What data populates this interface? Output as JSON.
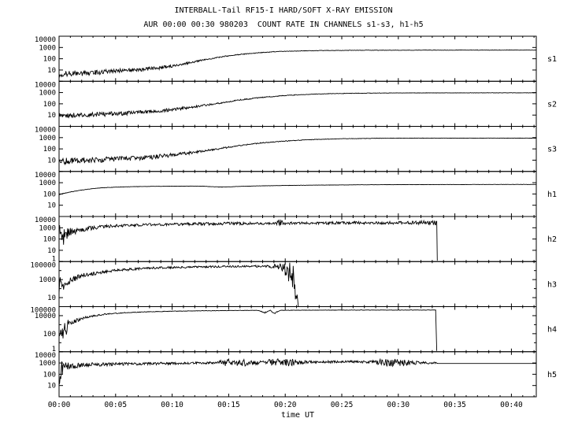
{
  "chart_data": {
    "type": "line",
    "title": "INTERBALL-Tail RF15-I HARD/SOFT X-RAY EMISSION",
    "subtitle": "AUR 00:00 00:30 980203  COUNT RATE IN CHANNELS s1-s3, h1-h5",
    "xlabel": "time UT",
    "y_scale": "log10",
    "panel_arrangement": "stacked-shared-x",
    "grid": false,
    "legend": "none",
    "colors": {
      "line": "#000000",
      "frame": "#000000",
      "background": "#ffffff"
    },
    "x_axis": {
      "unit": "minutes",
      "min": 0,
      "max": 42.2,
      "major_ticks": [
        {
          "t": 0,
          "label": "00:00"
        },
        {
          "t": 5,
          "label": "00:05"
        },
        {
          "t": 10,
          "label": "00:10"
        },
        {
          "t": 15,
          "label": "00:15"
        },
        {
          "t": 20,
          "label": "00:20"
        },
        {
          "t": 25,
          "label": "00:25"
        },
        {
          "t": 30,
          "label": "00:30"
        },
        {
          "t": 35,
          "label": "00:35"
        },
        {
          "t": 40,
          "label": "00:40"
        }
      ]
    },
    "points_format": "[time_minutes, count_rate, noise_amplitude_decades]",
    "panels": [
      {
        "id": "s1",
        "label": "s1",
        "ymin": 1,
        "ymax": 10000,
        "yticks": [
          10,
          100,
          1000,
          10000
        ],
        "points": [
          [
            0,
            4,
            0.28
          ],
          [
            1,
            5,
            0.25
          ],
          [
            2,
            5,
            0.25
          ],
          [
            3,
            6,
            0.22
          ],
          [
            4,
            7,
            0.22
          ],
          [
            5,
            8,
            0.2
          ],
          [
            6,
            9,
            0.2
          ],
          [
            7,
            11,
            0.18
          ],
          [
            8,
            13,
            0.16
          ],
          [
            9,
            16,
            0.15
          ],
          [
            10,
            22,
            0.12
          ],
          [
            11,
            35,
            0.1
          ],
          [
            12,
            55,
            0.08
          ],
          [
            13,
            85,
            0.06
          ],
          [
            14,
            130,
            0.05
          ],
          [
            15,
            180,
            0.04
          ],
          [
            16,
            240,
            0.04
          ],
          [
            17,
            300,
            0.03
          ],
          [
            18,
            360,
            0.03
          ],
          [
            19,
            420,
            0.03
          ],
          [
            20,
            460,
            0.02
          ],
          [
            22,
            510,
            0.02
          ],
          [
            24,
            540,
            0.02
          ],
          [
            26,
            560,
            0.02
          ],
          [
            28,
            570,
            0.02
          ],
          [
            30,
            575,
            0.015
          ],
          [
            33,
            580,
            0.015
          ],
          [
            36,
            585,
            0.015
          ],
          [
            39,
            585,
            0.015
          ],
          [
            42.2,
            585,
            0.015
          ]
        ]
      },
      {
        "id": "s2",
        "label": "s2",
        "ymin": 1,
        "ymax": 10000,
        "yticks": [
          10,
          100,
          1000,
          10000
        ],
        "points": [
          [
            0,
            9,
            0.22
          ],
          [
            2,
            10,
            0.2
          ],
          [
            4,
            12,
            0.2
          ],
          [
            6,
            15,
            0.18
          ],
          [
            8,
            20,
            0.16
          ],
          [
            10,
            30,
            0.14
          ],
          [
            12,
            55,
            0.1
          ],
          [
            14,
            110,
            0.07
          ],
          [
            16,
            220,
            0.05
          ],
          [
            18,
            380,
            0.04
          ],
          [
            20,
            550,
            0.03
          ],
          [
            22,
            700,
            0.025
          ],
          [
            24,
            800,
            0.02
          ],
          [
            26,
            860,
            0.02
          ],
          [
            28,
            900,
            0.02
          ],
          [
            30,
            920,
            0.015
          ],
          [
            34,
            940,
            0.015
          ],
          [
            38,
            950,
            0.015
          ],
          [
            42.2,
            950,
            0.015
          ]
        ]
      },
      {
        "id": "s3",
        "label": "s3",
        "ymin": 1,
        "ymax": 10000,
        "yticks": [
          10,
          100,
          1000,
          10000
        ],
        "points": [
          [
            0,
            8,
            0.3
          ],
          [
            2,
            9,
            0.28
          ],
          [
            4,
            11,
            0.25
          ],
          [
            6,
            14,
            0.22
          ],
          [
            8,
            18,
            0.2
          ],
          [
            10,
            28,
            0.16
          ],
          [
            12,
            50,
            0.12
          ],
          [
            14,
            100,
            0.08
          ],
          [
            16,
            200,
            0.06
          ],
          [
            18,
            350,
            0.04
          ],
          [
            20,
            500,
            0.03
          ],
          [
            22,
            650,
            0.025
          ],
          [
            24,
            750,
            0.02
          ],
          [
            26,
            820,
            0.02
          ],
          [
            28,
            870,
            0.02
          ],
          [
            30,
            890,
            0.015
          ],
          [
            34,
            900,
            0.015
          ],
          [
            42.2,
            900,
            0.015
          ]
        ]
      },
      {
        "id": "h1",
        "label": "h1",
        "ymin": 1,
        "ymax": 10000,
        "yticks": [
          10,
          100,
          1000,
          10000
        ],
        "points": [
          [
            0,
            90,
            0.02
          ],
          [
            1,
            150,
            0.02
          ],
          [
            2,
            220,
            0.015
          ],
          [
            3,
            300,
            0.015
          ],
          [
            4,
            360,
            0.015
          ],
          [
            5,
            400,
            0.012
          ],
          [
            6,
            430,
            0.012
          ],
          [
            7,
            455,
            0.012
          ],
          [
            8,
            470,
            0.012
          ],
          [
            9,
            480,
            0.012
          ],
          [
            10,
            490,
            0.012
          ],
          [
            11,
            495,
            0.012
          ],
          [
            12,
            500,
            0.012
          ],
          [
            12.8,
            490,
            0.012
          ],
          [
            13.5,
            440,
            0.012
          ],
          [
            14.2,
            420,
            0.012
          ],
          [
            15,
            430,
            0.012
          ],
          [
            16,
            470,
            0.012
          ],
          [
            17,
            500,
            0.012
          ],
          [
            18,
            530,
            0.012
          ],
          [
            20,
            570,
            0.012
          ],
          [
            22,
            600,
            0.012
          ],
          [
            24,
            625,
            0.012
          ],
          [
            26,
            645,
            0.012
          ],
          [
            28,
            660,
            0.012
          ],
          [
            30,
            672,
            0.012
          ],
          [
            33,
            685,
            0.012
          ],
          [
            36,
            692,
            0.012
          ],
          [
            39,
            698,
            0.012
          ],
          [
            42.2,
            700,
            0.012
          ]
        ]
      },
      {
        "id": "h2",
        "label": "h2",
        "ymin": 1,
        "ymax": 10000,
        "yticks": [
          1,
          10,
          100,
          1000,
          10000
        ],
        "points": [
          [
            0,
            120,
            1.2
          ],
          [
            0.6,
            250,
            0.8
          ],
          [
            1.2,
            400,
            0.3
          ],
          [
            2,
            700,
            0.2
          ],
          [
            3,
            1000,
            0.18
          ],
          [
            4,
            1300,
            0.15
          ],
          [
            5,
            1500,
            0.15
          ],
          [
            7,
            1800,
            0.13
          ],
          [
            9,
            2000,
            0.12
          ],
          [
            12,
            2200,
            0.12
          ],
          [
            15,
            2400,
            0.12
          ],
          [
            18,
            2500,
            0.12
          ],
          [
            19.2,
            2500,
            0.12
          ],
          [
            19.5,
            3200,
            0.45
          ],
          [
            19.8,
            2500,
            0.12
          ],
          [
            22,
            2600,
            0.12
          ],
          [
            25,
            2700,
            0.12
          ],
          [
            28,
            2750,
            0.12
          ],
          [
            31,
            2800,
            0.13
          ],
          [
            33,
            2900,
            0.25
          ],
          [
            33.4,
            2900,
            0.25
          ],
          [
            33.45,
            1.2,
            0
          ]
        ]
      },
      {
        "id": "h3",
        "label": "h3",
        "ymin": 1,
        "ymax": 100000,
        "yticks": [
          10,
          1000,
          100000
        ],
        "points": [
          [
            0,
            300,
            1.2
          ],
          [
            0.7,
            600,
            0.5
          ],
          [
            2,
            3000,
            0.2
          ],
          [
            5,
            10000,
            0.15
          ],
          [
            8,
            20000,
            0.12
          ],
          [
            12,
            25000,
            0.1
          ],
          [
            16,
            30000,
            0.1
          ],
          [
            18.5,
            30000,
            0.12
          ],
          [
            19.3,
            28000,
            0.3
          ],
          [
            19.8,
            20000,
            0.6
          ],
          [
            20.3,
            8000,
            1.2
          ],
          [
            20.7,
            1000,
            1.8
          ],
          [
            21,
            30,
            1.2
          ],
          [
            21.2,
            1,
            0
          ]
        ]
      },
      {
        "id": "h4",
        "label": "h4",
        "ymin": 1,
        "ymax": 100000,
        "yticks": [
          1,
          100,
          10000,
          100000
        ],
        "points": [
          [
            0,
            200,
            1.3
          ],
          [
            0.6,
            500,
            0.9
          ],
          [
            1.2,
            2000,
            0.3
          ],
          [
            2,
            5000,
            0.15
          ],
          [
            3,
            9000,
            0.1
          ],
          [
            4,
            14000,
            0.07
          ],
          [
            5,
            18000,
            0.05
          ],
          [
            6,
            22000,
            0.04
          ],
          [
            8,
            27000,
            0.03
          ],
          [
            10,
            31000,
            0.03
          ],
          [
            12,
            34000,
            0.025
          ],
          [
            14,
            36000,
            0.025
          ],
          [
            16,
            38000,
            0.02
          ],
          [
            17.6,
            39000,
            0.02
          ],
          [
            18.2,
            22000,
            0.08
          ],
          [
            18.7,
            39000,
            0.02
          ],
          [
            19,
            17000,
            0.1
          ],
          [
            19.6,
            39000,
            0.02
          ],
          [
            21,
            40000,
            0.02
          ],
          [
            24,
            41000,
            0.02
          ],
          [
            27,
            42000,
            0.02
          ],
          [
            30,
            42000,
            0.02
          ],
          [
            33.3,
            42000,
            0.02
          ],
          [
            33.4,
            1.2,
            0
          ]
        ]
      },
      {
        "id": "h5",
        "label": "h5",
        "ymin": 1,
        "ymax": 10000,
        "yticks": [
          10,
          100,
          1000,
          10000
        ],
        "points": [
          [
            0,
            150,
            1.1
          ],
          [
            0.5,
            400,
            0.6
          ],
          [
            1,
            550,
            0.3
          ],
          [
            2,
            650,
            0.2
          ],
          [
            3,
            700,
            0.18
          ],
          [
            5,
            800,
            0.15
          ],
          [
            7,
            850,
            0.13
          ],
          [
            9,
            900,
            0.12
          ],
          [
            11,
            950,
            0.1
          ],
          [
            13,
            1000,
            0.1
          ],
          [
            14,
            1050,
            0.12
          ],
          [
            14.7,
            1000,
            0.35
          ],
          [
            15.5,
            1100,
            0.3
          ],
          [
            16.5,
            1050,
            0.3
          ],
          [
            17.3,
            1100,
            0.2
          ],
          [
            18,
            1150,
            0.12
          ],
          [
            18.8,
            1250,
            0.3
          ],
          [
            19.6,
            1200,
            0.35
          ],
          [
            20.4,
            1150,
            0.35
          ],
          [
            21.2,
            1150,
            0.2
          ],
          [
            22,
            1200,
            0.12
          ],
          [
            24,
            1250,
            0.1
          ],
          [
            26,
            1300,
            0.1
          ],
          [
            27.8,
            1250,
            0.12
          ],
          [
            28.6,
            1100,
            0.35
          ],
          [
            29.5,
            1050,
            0.35
          ],
          [
            30.5,
            1050,
            0.3
          ],
          [
            31.3,
            1100,
            0.2
          ],
          [
            32,
            1050,
            0.1
          ],
          [
            33.3,
            1000,
            0.08
          ],
          [
            33.5,
            900,
            0
          ],
          [
            42.2,
            900,
            0
          ]
        ]
      }
    ]
  }
}
